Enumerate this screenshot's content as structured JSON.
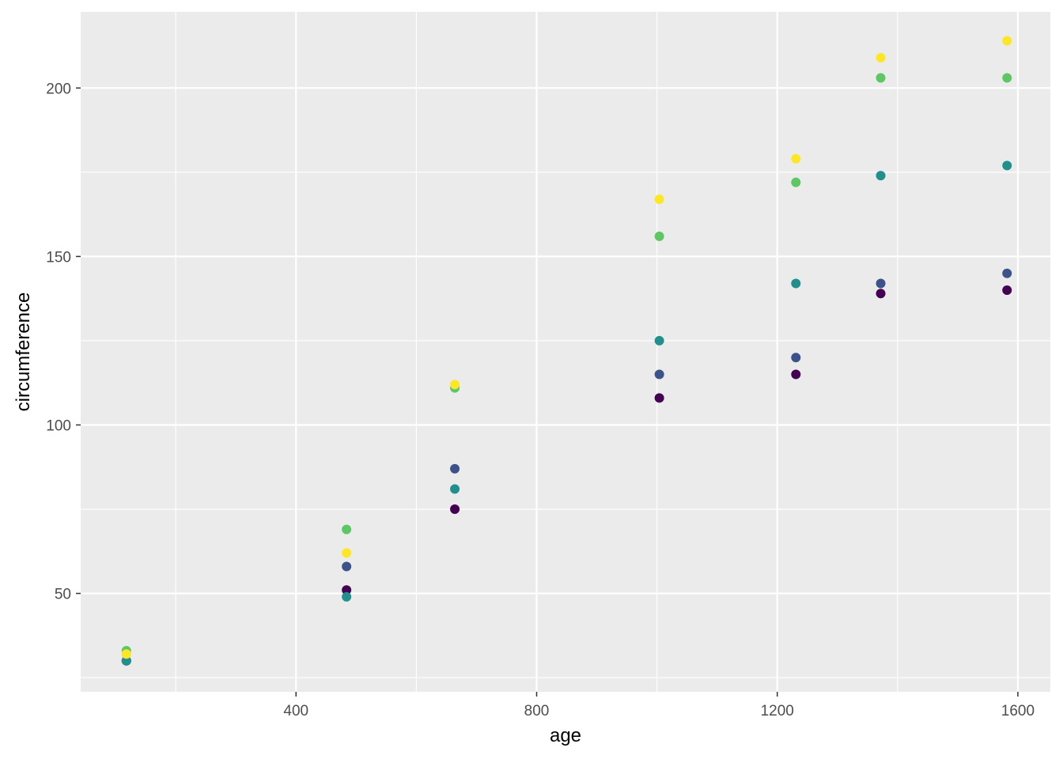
{
  "chart_data": {
    "type": "scatter",
    "title": "",
    "xlabel": "age",
    "ylabel": "circumference",
    "xlim": [
      42,
      1654
    ],
    "ylim": [
      20.8,
      222.6
    ],
    "x_ticks": [
      400,
      800,
      1200,
      1600
    ],
    "x_minor_ticks": [
      200,
      600,
      1000,
      1400
    ],
    "y_ticks": [
      50,
      100,
      150,
      200
    ],
    "y_minor_ticks": [
      25,
      75,
      125,
      175
    ],
    "x_tick_labels": [
      "400",
      "800",
      "1200",
      "1600"
    ],
    "y_tick_labels": [
      "50",
      "100",
      "150",
      "200"
    ],
    "grid": true,
    "legend": "none",
    "colors": {
      "panel_background": "#ebebeb",
      "grid": "#ffffff"
    },
    "series": [
      {
        "color": "#440154",
        "x": [
          118,
          484,
          664,
          1004,
          1231,
          1372,
          1582
        ],
        "y": [
          30,
          51,
          75,
          108,
          115,
          139,
          140
        ]
      },
      {
        "color": "#3b528b",
        "x": [
          118,
          484,
          664,
          1004,
          1231,
          1372,
          1582
        ],
        "y": [
          30,
          58,
          87,
          115,
          120,
          142,
          145
        ]
      },
      {
        "color": "#21908c",
        "x": [
          118,
          484,
          664,
          1004,
          1231,
          1372,
          1582
        ],
        "y": [
          30,
          49,
          81,
          125,
          142,
          174,
          177
        ]
      },
      {
        "color": "#5dc863",
        "x": [
          118,
          484,
          664,
          1004,
          1231,
          1372,
          1582
        ],
        "y": [
          33,
          69,
          111,
          156,
          172,
          203,
          203
        ]
      },
      {
        "color": "#fde725",
        "x": [
          118,
          484,
          664,
          1004,
          1231,
          1372,
          1582
        ],
        "y": [
          32,
          62,
          112,
          167,
          179,
          209,
          214
        ]
      }
    ]
  }
}
